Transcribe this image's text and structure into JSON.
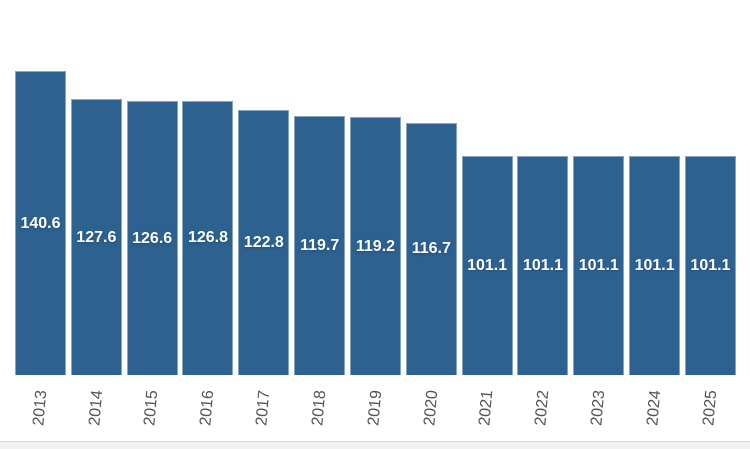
{
  "chart_data": {
    "type": "bar",
    "title": "",
    "xlabel": "",
    "ylabel": "",
    "categories": [
      "2013",
      "2014",
      "2015",
      "2016",
      "2017",
      "2018",
      "2019",
      "2020",
      "2021",
      "2022",
      "2023",
      "2024",
      "2025"
    ],
    "values": [
      140.6,
      127.6,
      126.6,
      126.8,
      122.8,
      119.7,
      119.2,
      116.7,
      101.1,
      101.1,
      101.1,
      101.1,
      101.1
    ],
    "value_labels": [
      "140.6",
      "127.6",
      "126.6",
      "126.8",
      "122.8",
      "119.7",
      "119.2",
      "116.7",
      "101.1",
      "101.1",
      "101.1",
      "101.1",
      "101.1"
    ],
    "ylim": [
      0,
      173
    ],
    "grid": false,
    "legend_position": "none",
    "value_label_placement": "inside-middle",
    "x_tick_rotation_deg": -85,
    "colors": {
      "bar_fill": "#2d618f",
      "value_label": "#ffffff",
      "axis_tick_label": "#555555",
      "background": "#ffffff",
      "footer_strip_fill": "#f1f1f1",
      "footer_strip_border": "#d6d6d6"
    }
  }
}
